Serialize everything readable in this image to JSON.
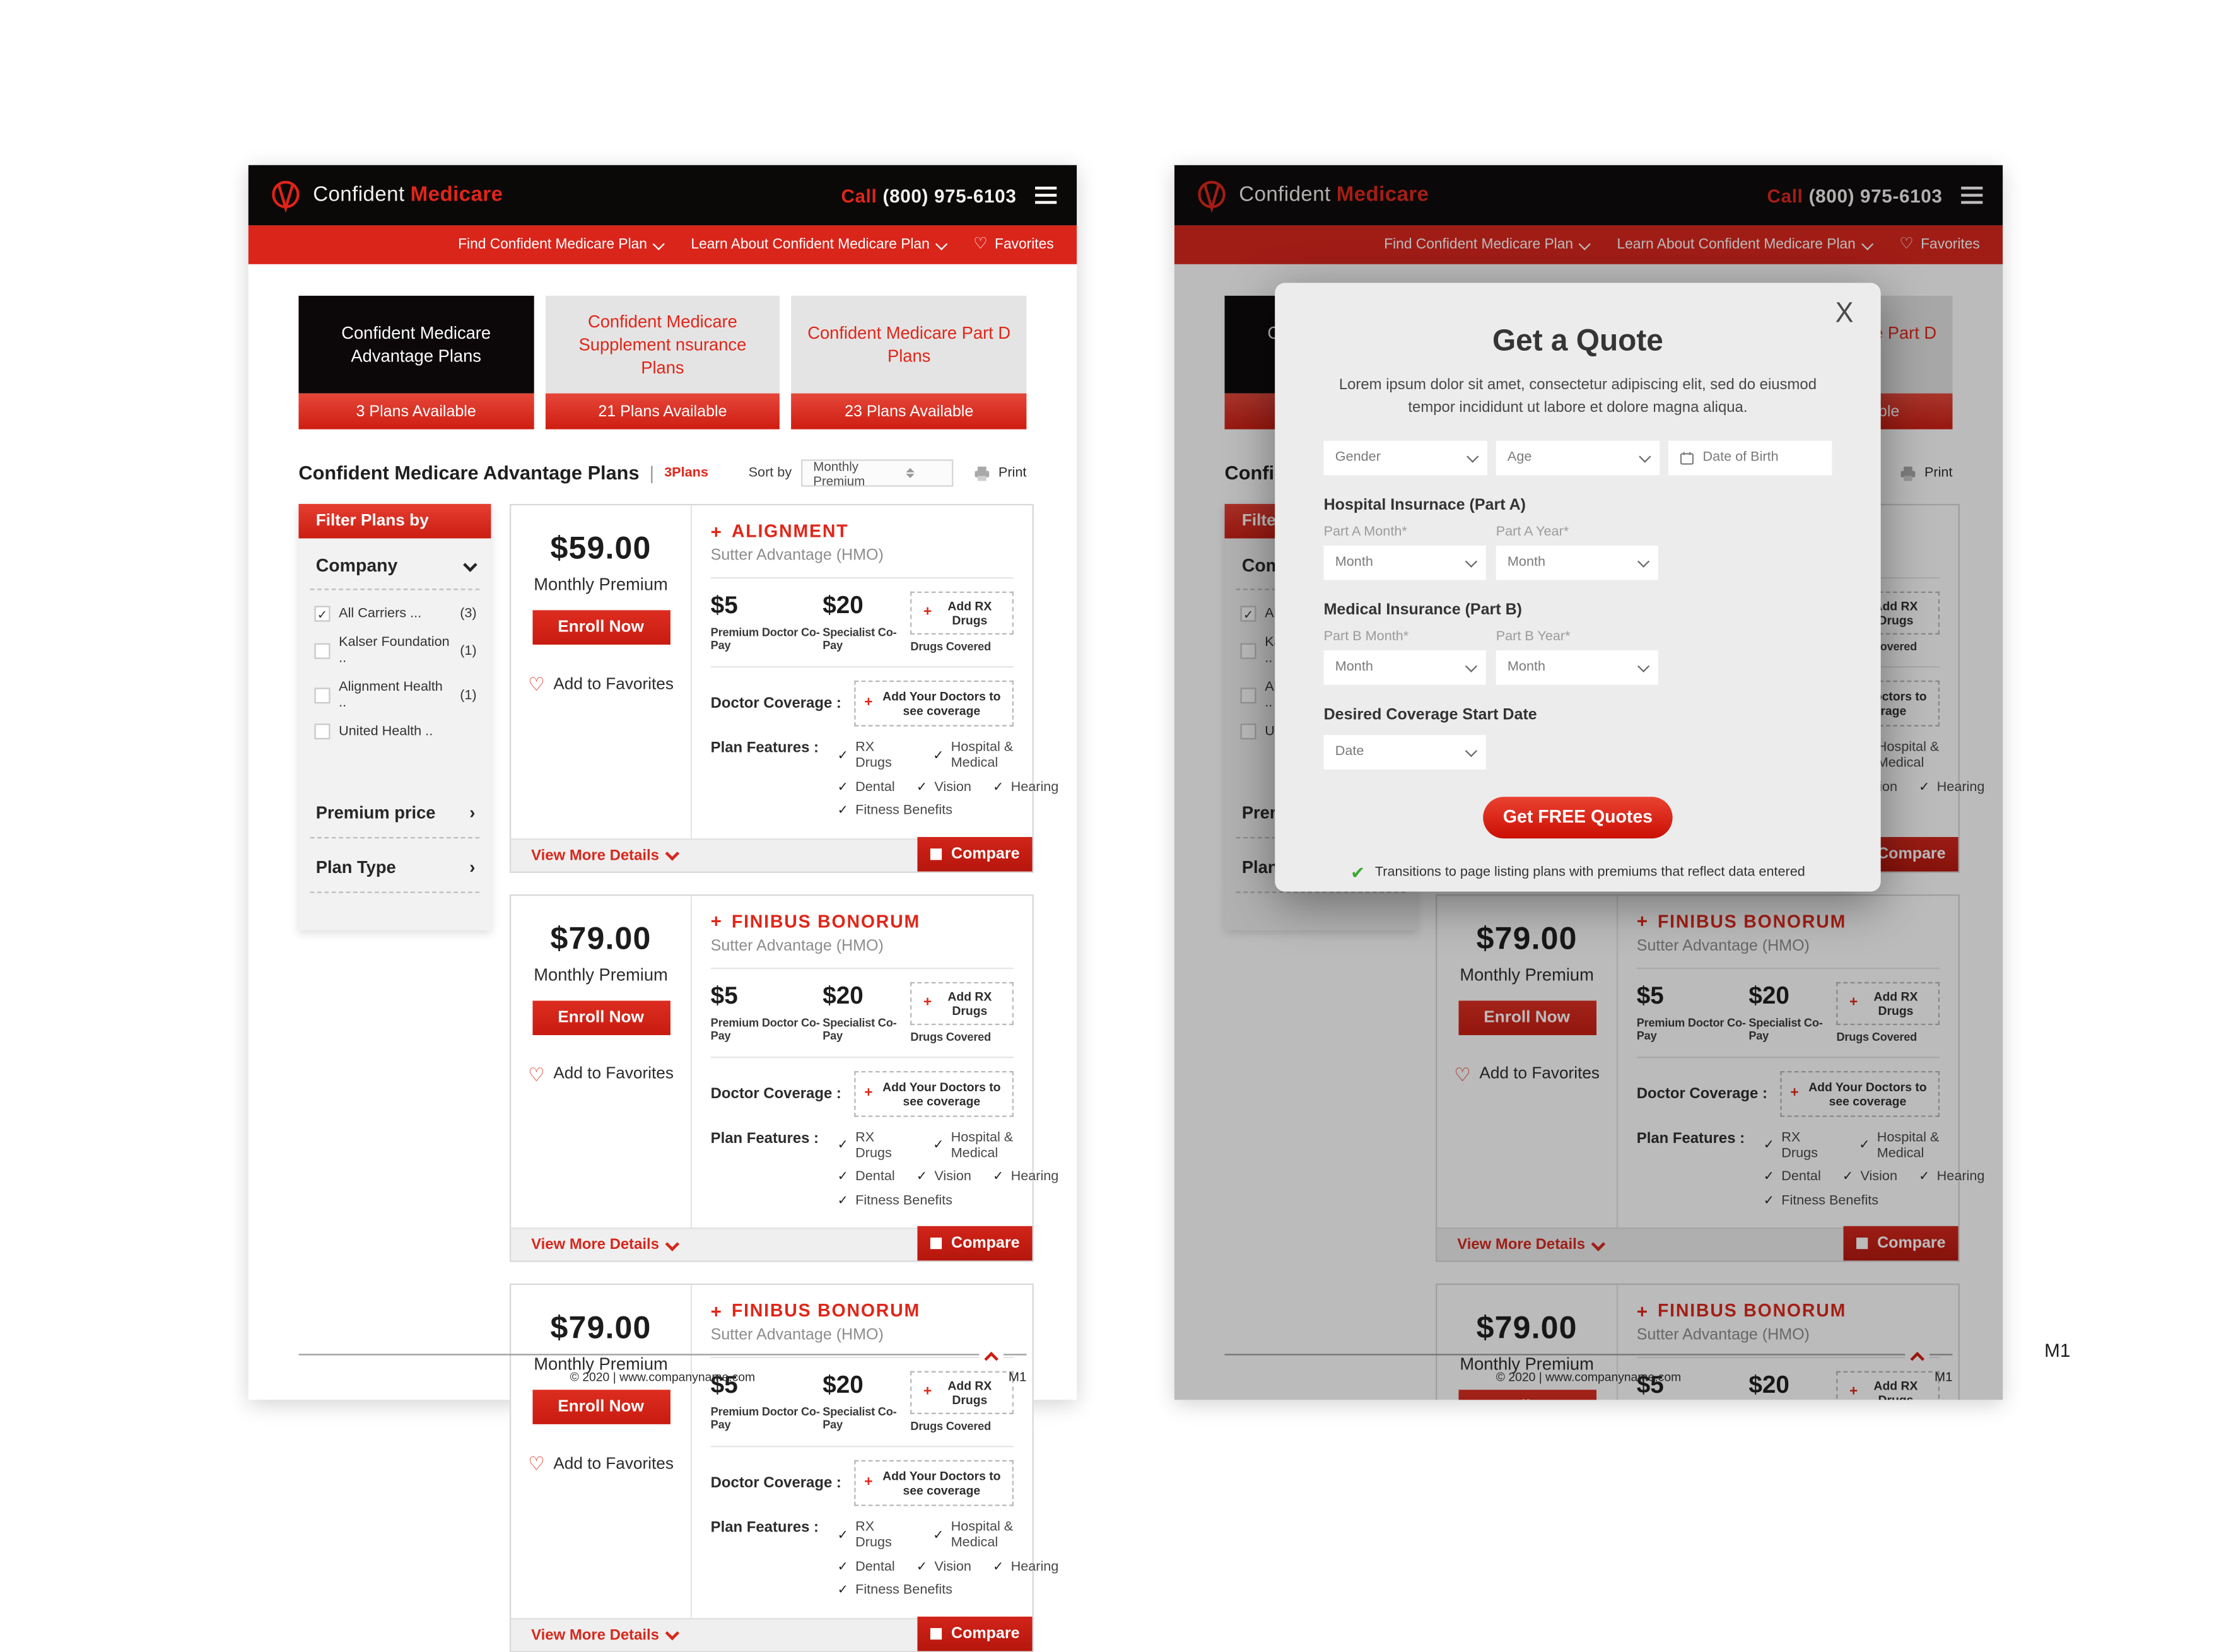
{
  "meta": {
    "outer_label": "M1",
    "page_label": "M1"
  },
  "header": {
    "brand_first": "Confident",
    "brand_second": "Medicare",
    "call_label": "Call",
    "phone": "(800) 975-6103"
  },
  "nav": {
    "items": [
      {
        "label": "Find Confident Medicare Plan"
      },
      {
        "label": "Learn About Confident Medicare Plan"
      }
    ],
    "favorites": "Favorites",
    "heart_icon": "♡"
  },
  "tabs": [
    {
      "title": "Confident Medicare Advantage Plans",
      "count": "3 Plans Available"
    },
    {
      "title": "Confident Medicare Supplement nsurance Plans",
      "count": "21 Plans Available"
    },
    {
      "title": "Confident Medicare Part D Plans",
      "count": "23 Plans Available"
    }
  ],
  "listing": {
    "title": "Confident Medicare Advantage Plans",
    "pipe": "|",
    "count_label": "3Plans",
    "sort_label": "Sort by",
    "sort_value": "Monthly Premium",
    "print_label": "Print"
  },
  "filters": {
    "header": "Filter Plans by",
    "company_label": "Company",
    "options": [
      {
        "label": "All Carriers ...",
        "count": "(3)",
        "check": "✓"
      },
      {
        "label": "Kalser Foundation ..",
        "count": "(1)",
        "check": ""
      },
      {
        "label": "Alignment Health ..",
        "count": "(1)",
        "check": ""
      },
      {
        "label": "United Health ..",
        "count": "",
        "check": ""
      }
    ],
    "sections": [
      {
        "label": "Premium price",
        "arrow": "›"
      },
      {
        "label": "Plan Type",
        "arrow": "›"
      }
    ]
  },
  "plans": [
    {
      "price": "$59.00",
      "premium_label": "Monthly Premium",
      "enroll": "Enroll Now",
      "favorites": "Add to Favorites",
      "heart_icon": "♡",
      "plus_icon": "+",
      "name": "ALIGNMENT",
      "subtitle": "Sutter Advantage (HMO)",
      "copay1_value": "$5",
      "copay1_label": "Premium Doctor Co-Pay",
      "copay2_value": "$20",
      "copay2_label": "Specialist Co-Pay",
      "rx_button": "Add RX Drugs",
      "rx_label": "Drugs Covered",
      "doctor_label": "Doctor Coverage :",
      "doctor_button": "Add Your Doctors to see coverage",
      "features_label": "Plan Features :",
      "features_row1": [
        "RX Drugs",
        "Hospital & Medical"
      ],
      "features_row2": [
        "Dental",
        "Vision",
        "Hearing"
      ],
      "features_row3": [
        "Fitness Benefits"
      ],
      "view_more": "View More Details",
      "compare": "Compare"
    },
    {
      "price": "$79.00",
      "premium_label": "Monthly Premium",
      "enroll": "Enroll Now",
      "favorites": "Add to Favorites",
      "heart_icon": "♡",
      "plus_icon": "+",
      "name": "FINIBUS BONORUM",
      "subtitle": "Sutter Advantage (HMO)",
      "copay1_value": "$5",
      "copay1_label": "Premium Doctor Co-Pay",
      "copay2_value": "$20",
      "copay2_label": "Specialist Co-Pay",
      "rx_button": "Add RX Drugs",
      "rx_label": "Drugs Covered",
      "doctor_label": "Doctor Coverage :",
      "doctor_button": "Add Your Doctors to see coverage",
      "features_label": "Plan Features :",
      "features_row1": [
        "RX Drugs",
        "Hospital & Medical"
      ],
      "features_row2": [
        "Dental",
        "Vision",
        "Hearing"
      ],
      "features_row3": [
        "Fitness Benefits"
      ],
      "view_more": "View More Details",
      "compare": "Compare"
    },
    {
      "price": "$79.00",
      "premium_label": "Monthly Premium",
      "enroll": "Enroll Now",
      "favorites": "Add to Favorites",
      "heart_icon": "♡",
      "plus_icon": "+",
      "name": "FINIBUS BONORUM",
      "subtitle": "Sutter Advantage (HMO)",
      "copay1_value": "$5",
      "copay1_label": "Premium Doctor Co-Pay",
      "copay2_value": "$20",
      "copay2_label": "Specialist Co-Pay",
      "rx_button": "Add RX Drugs",
      "rx_label": "Drugs Covered",
      "doctor_label": "Doctor Coverage :",
      "doctor_button": "Add Your Doctors to see coverage",
      "features_label": "Plan Features :",
      "features_row1": [
        "RX Drugs",
        "Hospital & Medical"
      ],
      "features_row2": [
        "Dental",
        "Vision",
        "Hearing"
      ],
      "features_row3": [
        "Fitness Benefits"
      ],
      "view_more": "View More Details",
      "compare": "Compare"
    }
  ],
  "footer": {
    "copyright": "© 2020  |  www.companyname.com"
  },
  "modal": {
    "close_icon": "X",
    "title": "Get a Quote",
    "description": "Lorem ipsum dolor sit amet, consectetur adipiscing elit, sed do eiusmod tempor incididunt ut labore et dolore magna aliqua.",
    "gender_value": "Gender",
    "age_value": "Age",
    "dob_placeholder": "Date of Birth",
    "part_a_heading": "Hospital Insurnace (Part A)",
    "part_a_month_label": "Part A Month*",
    "part_a_year_label": "Part A Year*",
    "part_a_month_value": "Month",
    "part_a_year_value": "Month",
    "part_b_heading": "Medical Insurance (Part B)",
    "part_b_month_label": "Part B Month*",
    "part_b_year_label": "Part B Year*",
    "part_b_month_value": "Month",
    "part_b_year_value": "Month",
    "coverage_heading": "Desired Coverage Start Date",
    "coverage_date_value": "Date",
    "submit": "Get FREE Quotes",
    "note_check": "✔",
    "note": "Transitions to page listing plans with premiums that reflect data entered"
  }
}
